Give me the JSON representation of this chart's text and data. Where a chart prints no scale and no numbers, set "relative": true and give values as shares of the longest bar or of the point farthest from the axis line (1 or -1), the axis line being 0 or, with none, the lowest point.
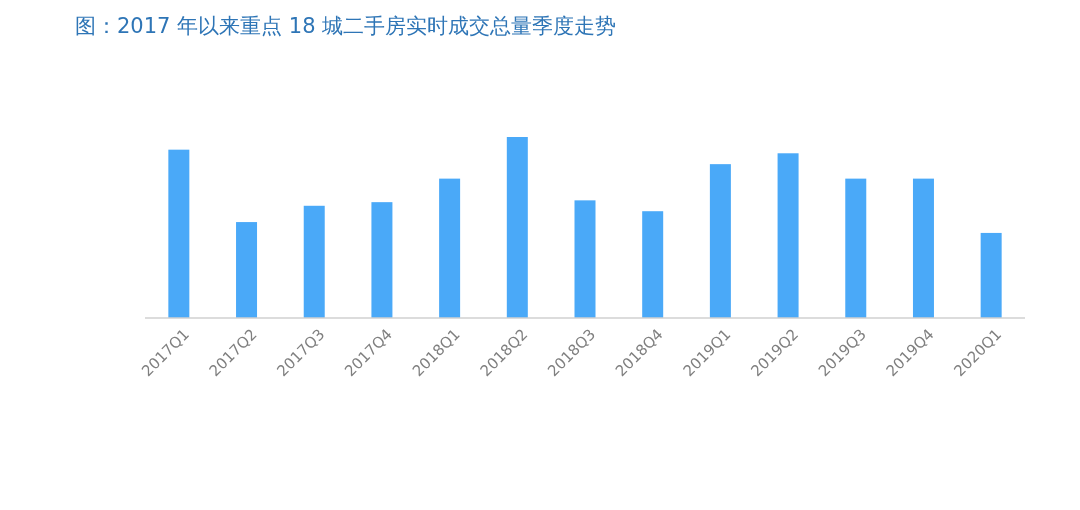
{
  "chart_data": {
    "type": "bar",
    "title": "图：2017 年以来重点 18 城二手房实时成交总量季度走势",
    "relative": true,
    "categories": [
      "2017Q1",
      "2017Q2",
      "2017Q3",
      "2017Q4",
      "2018Q1",
      "2018Q2",
      "2018Q3",
      "2018Q4",
      "2019Q1",
      "2019Q2",
      "2019Q3",
      "2019Q4",
      "2020Q1"
    ],
    "values": [
      0.93,
      0.53,
      0.62,
      0.64,
      0.77,
      1,
      0.65,
      0.59,
      0.85,
      0.91,
      0.77,
      0.77,
      0.47
    ],
    "color": "#4aa9f8"
  }
}
